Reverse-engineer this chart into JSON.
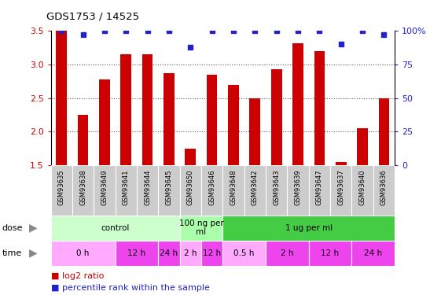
{
  "title": "GDS1753 / 14525",
  "samples": [
    "GSM93635",
    "GSM93638",
    "GSM93649",
    "GSM93641",
    "GSM93644",
    "GSM93645",
    "GSM93650",
    "GSM93646",
    "GSM93648",
    "GSM93642",
    "GSM93643",
    "GSM93639",
    "GSM93647",
    "GSM93637",
    "GSM93640",
    "GSM93636"
  ],
  "log2_ratio": [
    3.5,
    2.25,
    2.78,
    3.15,
    3.15,
    2.87,
    1.75,
    2.85,
    2.7,
    2.5,
    2.93,
    3.32,
    3.2,
    1.55,
    2.05,
    2.5
  ],
  "percentile_rank": [
    100,
    97,
    100,
    100,
    100,
    100,
    88,
    100,
    100,
    100,
    100,
    100,
    100,
    90,
    100,
    97
  ],
  "ylim_left": [
    1.5,
    3.5
  ],
  "yticks_left": [
    1.5,
    2.0,
    2.5,
    3.0,
    3.5
  ],
  "yticks_right": [
    0,
    25,
    50,
    75,
    100
  ],
  "bar_color": "#cc0000",
  "dot_color": "#2222cc",
  "dot_size": 5,
  "dose_groups": [
    {
      "label": "control",
      "start": 0,
      "end": 6,
      "color": "#ccffcc"
    },
    {
      "label": "100 ng per\nml",
      "start": 6,
      "end": 8,
      "color": "#aaffaa"
    },
    {
      "label": "1 ug per ml",
      "start": 8,
      "end": 16,
      "color": "#44cc44"
    }
  ],
  "time_groups": [
    {
      "label": "0 h",
      "start": 0,
      "end": 3,
      "color": "#ffaaff"
    },
    {
      "label": "12 h",
      "start": 3,
      "end": 5,
      "color": "#ee44ee"
    },
    {
      "label": "24 h",
      "start": 5,
      "end": 6,
      "color": "#ee44ee"
    },
    {
      "label": "2 h",
      "start": 6,
      "end": 7,
      "color": "#ffaaff"
    },
    {
      "label": "12 h",
      "start": 7,
      "end": 8,
      "color": "#ee44ee"
    },
    {
      "label": "0.5 h",
      "start": 8,
      "end": 10,
      "color": "#ffaaff"
    },
    {
      "label": "2 h",
      "start": 10,
      "end": 12,
      "color": "#ee44ee"
    },
    {
      "label": "12 h",
      "start": 12,
      "end": 14,
      "color": "#ee44ee"
    },
    {
      "label": "24 h",
      "start": 14,
      "end": 16,
      "color": "#ee44ee"
    }
  ],
  "legend_red_label": "log2 ratio",
  "legend_blue_label": "percentile rank within the sample",
  "dose_label": "dose",
  "time_label": "time",
  "bar_color_left": "#cc0000",
  "bar_color_right": "#2222cc",
  "bar_width": 0.5,
  "background_color": "#ffffff",
  "xlabel_bg": "#cccccc"
}
